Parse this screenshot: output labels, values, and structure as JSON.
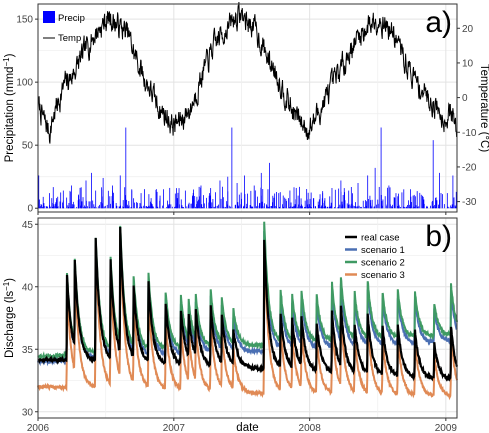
{
  "chart_data": [
    {
      "panel_label": "a)",
      "type": "bar+line",
      "ylabel_left": "Precipitation (mmd",
      "ylabel_left_sup": "−1",
      "ylabel_left_end": ")",
      "ylabel_right": "Temperature (°C)",
      "ylim_left": [
        -3,
        162
      ],
      "ylim_right": [
        -33,
        27
      ],
      "yticks_left": [
        "0",
        "50",
        "100",
        "150"
      ],
      "yticks_right": [
        "-30",
        "-20",
        "-10",
        "0",
        "10",
        "20"
      ],
      "legend": {
        "placement": "top-left",
        "entries": [
          "Precip",
          "Temp"
        ]
      },
      "x_range": [
        "2006-01-01",
        "2009-01-31"
      ],
      "grid": true,
      "series": [
        {
          "name": "Precip",
          "type": "bar",
          "axis": "left",
          "color": "#0000ff",
          "description": "daily precipitation, mostly below 30 mm/d, peaks up to about 65 mm/d",
          "values": [
            [
              "2006-01-03",
              26
            ],
            [
              "2006-01-15",
              9
            ],
            [
              "2006-02-01",
              12
            ],
            [
              "2006-02-20",
              8
            ],
            [
              "2006-03-10",
              14
            ],
            [
              "2006-04-01",
              18
            ],
            [
              "2006-04-20",
              10
            ],
            [
              "2006-05-10",
              22
            ],
            [
              "2006-05-25",
              28
            ],
            [
              "2006-06-05",
              14
            ],
            [
              "2006-06-25",
              24
            ],
            [
              "2006-07-20",
              18
            ],
            [
              "2006-08-10",
              26
            ],
            [
              "2006-08-25",
              64
            ],
            [
              "2006-09-10",
              15
            ],
            [
              "2006-10-05",
              12
            ],
            [
              "2006-11-01",
              8
            ],
            [
              "2006-11-25",
              10
            ],
            [
              "2006-12-15",
              6
            ],
            [
              "2007-01-10",
              8
            ],
            [
              "2007-02-01",
              14
            ],
            [
              "2007-02-20",
              10
            ],
            [
              "2007-03-15",
              18
            ],
            [
              "2007-04-10",
              16
            ],
            [
              "2007-05-05",
              22
            ],
            [
              "2007-05-26",
              25
            ],
            [
              "2007-06-06",
              64
            ],
            [
              "2007-06-20",
              20
            ],
            [
              "2007-07-10",
              26
            ],
            [
              "2007-08-05",
              18
            ],
            [
              "2007-08-24",
              28
            ],
            [
              "2007-09-15",
              36
            ],
            [
              "2007-10-10",
              12
            ],
            [
              "2007-11-05",
              8
            ],
            [
              "2007-12-01",
              10
            ],
            [
              "2007-12-20",
              6
            ],
            [
              "2008-01-12",
              8
            ],
            [
              "2008-02-05",
              12
            ],
            [
              "2008-03-01",
              16
            ],
            [
              "2008-03-25",
              22
            ],
            [
              "2008-04-15",
              14
            ],
            [
              "2008-05-10",
              20
            ],
            [
              "2008-06-05",
              26
            ],
            [
              "2008-06-25",
              32
            ],
            [
              "2008-07-11",
              64
            ],
            [
              "2008-08-01",
              18
            ],
            [
              "2008-08-20",
              12
            ],
            [
              "2008-09-10",
              15
            ],
            [
              "2008-10-05",
              10
            ],
            [
              "2008-11-01",
              9
            ],
            [
              "2008-11-28",
              54
            ],
            [
              "2008-12-15",
              28
            ],
            [
              "2009-01-05",
              12
            ],
            [
              "2009-01-20",
              26
            ]
          ]
        },
        {
          "name": "Temp",
          "type": "line",
          "axis": "right",
          "color": "#000000",
          "description": "daily air temperature, seasonal cycle from about -12 °C in winter to about 24 °C in summer",
          "values": [
            [
              "2006-01-01",
              -2
            ],
            [
              "2006-01-15",
              -6
            ],
            [
              "2006-02-01",
              -10
            ],
            [
              "2006-02-15",
              -4
            ],
            [
              "2006-03-01",
              0
            ],
            [
              "2006-03-15",
              4
            ],
            [
              "2006-04-01",
              6
            ],
            [
              "2006-04-15",
              9
            ],
            [
              "2006-05-01",
              12
            ],
            [
              "2006-05-15",
              15
            ],
            [
              "2006-06-01",
              18
            ],
            [
              "2006-06-15",
              20
            ],
            [
              "2006-07-01",
              22
            ],
            [
              "2006-07-15",
              23
            ],
            [
              "2006-08-01",
              21
            ],
            [
              "2006-08-15",
              20
            ],
            [
              "2006-09-01",
              18
            ],
            [
              "2006-09-15",
              13
            ],
            [
              "2006-10-01",
              9
            ],
            [
              "2006-10-15",
              5
            ],
            [
              "2006-11-01",
              2
            ],
            [
              "2006-11-15",
              -2
            ],
            [
              "2006-12-01",
              -4
            ],
            [
              "2006-12-15",
              -6
            ],
            [
              "2007-01-01",
              -8
            ],
            [
              "2007-01-15",
              -7
            ],
            [
              "2007-02-01",
              -5
            ],
            [
              "2007-02-15",
              -3
            ],
            [
              "2007-03-01",
              1
            ],
            [
              "2007-03-15",
              6
            ],
            [
              "2007-04-01",
              10
            ],
            [
              "2007-04-15",
              14
            ],
            [
              "2007-05-01",
              17
            ],
            [
              "2007-05-15",
              19
            ],
            [
              "2007-06-01",
              21
            ],
            [
              "2007-06-15",
              23
            ],
            [
              "2007-07-01",
              24
            ],
            [
              "2007-07-15",
              22
            ],
            [
              "2007-08-01",
              21
            ],
            [
              "2007-08-15",
              18
            ],
            [
              "2007-09-01",
              14
            ],
            [
              "2007-09-15",
              10
            ],
            [
              "2007-10-01",
              8
            ],
            [
              "2007-10-15",
              4
            ],
            [
              "2007-11-01",
              0
            ],
            [
              "2007-11-15",
              -4
            ],
            [
              "2007-12-01",
              -6
            ],
            [
              "2007-12-15",
              -8
            ],
            [
              "2008-01-01",
              -9
            ],
            [
              "2008-01-15",
              -6
            ],
            [
              "2008-02-01",
              -3
            ],
            [
              "2008-02-15",
              0
            ],
            [
              "2008-03-01",
              3
            ],
            [
              "2008-03-15",
              6
            ],
            [
              "2008-04-01",
              10
            ],
            [
              "2008-04-15",
              13
            ],
            [
              "2008-05-01",
              16
            ],
            [
              "2008-05-15",
              18
            ],
            [
              "2008-06-01",
              20
            ],
            [
              "2008-06-15",
              22
            ],
            [
              "2008-07-01",
              23
            ],
            [
              "2008-07-15",
              22
            ],
            [
              "2008-08-01",
              20
            ],
            [
              "2008-08-15",
              18
            ],
            [
              "2008-09-01",
              14
            ],
            [
              "2008-09-15",
              10
            ],
            [
              "2008-10-01",
              7
            ],
            [
              "2008-10-15",
              4
            ],
            [
              "2008-11-01",
              2
            ],
            [
              "2008-11-15",
              0
            ],
            [
              "2008-12-01",
              -2
            ],
            [
              "2008-12-15",
              -4
            ],
            [
              "2009-01-01",
              -6
            ],
            [
              "2009-01-15",
              -4
            ],
            [
              "2009-01-31",
              -10
            ]
          ]
        }
      ]
    },
    {
      "panel_label": "b)",
      "type": "line",
      "ylabel": "Discharge (ls",
      "ylabel_sup": "−1",
      "ylabel_end": ")",
      "xlabel": "date",
      "ylim": [
        29.5,
        45.5
      ],
      "yticks": [
        "30",
        "35",
        "40",
        "45"
      ],
      "xticks": [
        "2006",
        "2007",
        "2008",
        "2009"
      ],
      "x_range": [
        "2006-01-01",
        "2009-01-31"
      ],
      "grid": true,
      "legend": {
        "placement": "top-right",
        "entries": [
          "real case",
          "scenario 1",
          "scenario 2",
          "scenario 3"
        ]
      },
      "events": [
        {
          "date": "2006-03-20",
          "peak": 41.0
        },
        {
          "date": "2006-04-10",
          "peak": 41.0
        },
        {
          "date": "2006-06-05",
          "peak": 44.0
        },
        {
          "date": "2006-07-15",
          "peak": 42.0
        },
        {
          "date": "2006-08-10",
          "peak": 44.0
        },
        {
          "date": "2006-09-15",
          "peak": 40.0
        },
        {
          "date": "2006-10-25",
          "peak": 40.5
        },
        {
          "date": "2006-12-10",
          "peak": 39.0
        },
        {
          "date": "2007-01-20",
          "peak": 38.5
        },
        {
          "date": "2007-02-10",
          "peak": 37.5
        },
        {
          "date": "2007-03-01",
          "peak": 38.0
        },
        {
          "date": "2007-04-10",
          "peak": 39.0
        },
        {
          "date": "2007-05-10",
          "peak": 38.0
        },
        {
          "date": "2007-06-10",
          "peak": 37.0
        },
        {
          "date": "2007-09-01",
          "peak": 44.6
        },
        {
          "date": "2007-10-15",
          "peak": 38.5
        },
        {
          "date": "2007-11-15",
          "peak": 38.0
        },
        {
          "date": "2007-12-10",
          "peak": 38.2
        },
        {
          "date": "2008-01-20",
          "peak": 38.0
        },
        {
          "date": "2008-03-01",
          "peak": 39.0
        },
        {
          "date": "2008-03-25",
          "peak": 39.0
        },
        {
          "date": "2008-05-01",
          "peak": 38.0
        },
        {
          "date": "2008-06-05",
          "peak": 39.0
        },
        {
          "date": "2008-07-15",
          "peak": 38.0
        },
        {
          "date": "2008-08-25",
          "peak": 38.2
        },
        {
          "date": "2008-10-10",
          "peak": 38.0
        },
        {
          "date": "2008-12-01",
          "peak": 37.0
        },
        {
          "date": "2009-01-15",
          "peak": 38.5
        }
      ],
      "series": [
        {
          "name": "real case",
          "color": "#000000",
          "baseline": [
            34.2,
            33.5,
            32.5
          ],
          "peak_scale": 1.0
        },
        {
          "name": "scenario 1",
          "color": "#4a6fb3",
          "baseline": [
            34.0,
            34.8,
            35.6
          ],
          "peak_scale": 0.92
        },
        {
          "name": "scenario 2",
          "color": "#3f9a63",
          "baseline": [
            34.4,
            35.3,
            36.1
          ],
          "peak_scale": 0.95
        },
        {
          "name": "scenario 3",
          "color": "#e08a55",
          "baseline": [
            32.0,
            31.5,
            31.2
          ],
          "peak_scale": 1.15
        }
      ]
    }
  ]
}
